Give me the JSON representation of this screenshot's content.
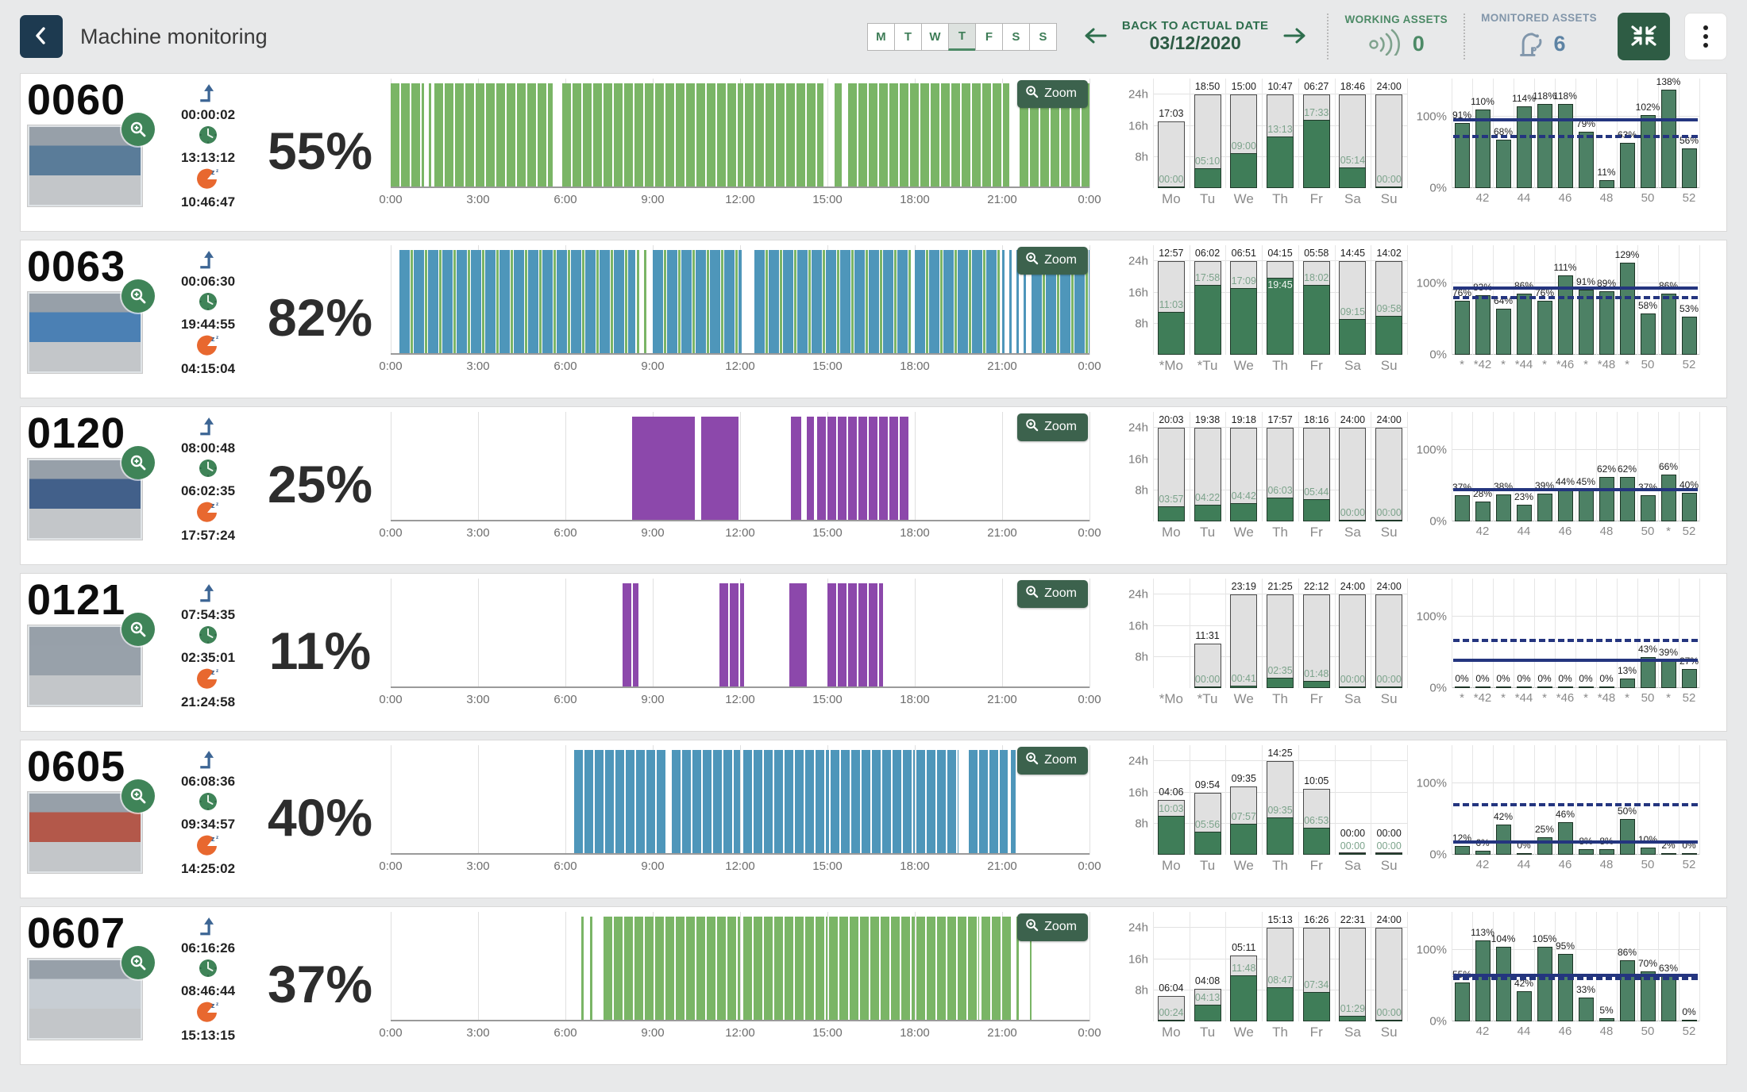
{
  "header": {
    "title": "Machine monitoring",
    "days": [
      "M",
      "T",
      "W",
      "T",
      "F",
      "S",
      "S"
    ],
    "active_day_index": 3,
    "back_to_date_label": "BACK TO ACTUAL DATE",
    "date": "03/12/2020",
    "working_assets": {
      "label": "WORKING ASSETS",
      "count": "0"
    },
    "monitored_assets": {
      "label": "MONITORED ASSETS",
      "count": "6"
    }
  },
  "colors": {
    "timeline_green": "#7ab566",
    "timeline_blue": "#4e96ba",
    "timeline_purple": "#8c48ab",
    "line_navy": "#24357f",
    "bar_green": "#4d8165",
    "accent_green": "#2e5c44",
    "navy": "#1d3a50"
  },
  "timeline_axis": [
    "0:00",
    "3:00",
    "6:00",
    "9:00",
    "12:00",
    "15:00",
    "18:00",
    "21:00",
    "0:00"
  ],
  "week_y_labels": [
    "24h",
    "16h",
    "8h"
  ],
  "pct_y_labels": [
    "100%",
    "0%"
  ],
  "zoom_label": "Zoom",
  "chart_data": {
    "type": "table",
    "note": "per-machine charts stored under machines[]"
  },
  "machines": [
    {
      "id": "0060",
      "incoming_time": "00:00:02",
      "working_time": "13:13:12",
      "idle_time": "10:46:47",
      "percent": "55%",
      "photo_tint": "#5a7c99",
      "timeline_segments": [
        [
          0,
          1.0,
          "g-t"
        ],
        [
          1.05,
          1.45,
          "g-x"
        ],
        [
          1.5,
          5.55,
          "g-t"
        ],
        [
          5.9,
          12.1,
          "g-t"
        ],
        [
          12.15,
          14.85,
          "g-t"
        ],
        [
          15.25,
          15.5,
          "g-s"
        ],
        [
          15.7,
          21.25,
          "g-t"
        ],
        [
          21.6,
          24,
          "g-t"
        ]
      ],
      "week_days": [
        [
          "Mo",
          "17:03",
          "00:00"
        ],
        [
          "Tu",
          "18:50",
          "05:10"
        ],
        [
          "We",
          "15:00",
          "09:00"
        ],
        [
          "Th",
          "10:47",
          "13:13"
        ],
        [
          "Fr",
          "06:27",
          "17:33"
        ],
        [
          "Sa",
          "18:46",
          "05:14"
        ],
        [
          "Su",
          "24:00",
          "00:00"
        ]
      ],
      "weeks": {
        "values": [
          91,
          110,
          68,
          114,
          118,
          118,
          79,
          11,
          63,
          102,
          138,
          56
        ],
        "ticks": [
          "",
          "42",
          "",
          "44",
          "",
          "46",
          "",
          "48",
          "",
          "50",
          "",
          "52"
        ],
        "solid_line": 93,
        "dashed_line": 70
      }
    },
    {
      "id": "0063",
      "incoming_time": "00:06:30",
      "working_time": "19:44:55",
      "idle_time": "04:15:04",
      "percent": "82%",
      "photo_tint": "#4b80b4",
      "timeline_segments": [
        [
          0.3,
          8.4,
          "m"
        ],
        [
          8.45,
          8.95,
          "g-x"
        ],
        [
          9.0,
          12.05,
          "m"
        ],
        [
          12.5,
          17.9,
          "m"
        ],
        [
          18.0,
          20.95,
          "m"
        ],
        [
          21.0,
          21.9,
          "b-x"
        ],
        [
          22.0,
          24,
          "m"
        ]
      ],
      "week_days": [
        [
          "*Mo",
          "12:57",
          "11:03"
        ],
        [
          "*Tu",
          "06:02",
          "17:58"
        ],
        [
          "We",
          "06:51",
          "17:09"
        ],
        [
          "Th",
          "04:15",
          "19:45"
        ],
        [
          "Fr",
          "05:58",
          "18:02"
        ],
        [
          "Sa",
          "14:45",
          "09:15"
        ],
        [
          "Su",
          "14:02",
          "09:58"
        ]
      ],
      "weeks": {
        "values": [
          76,
          83,
          64,
          86,
          76,
          111,
          91,
          89,
          129,
          58,
          86,
          53
        ],
        "ticks": [
          "*",
          "*42",
          "*",
          "*44",
          "*",
          "*46",
          "*",
          "*48",
          "*",
          "50",
          "",
          "52"
        ],
        "solid_line": 91,
        "dashed_line": 78
      }
    },
    {
      "id": "0120",
      "incoming_time": "08:00:48",
      "working_time": "06:02:35",
      "idle_time": "17:57:24",
      "percent": "25%",
      "photo_tint": "#42608a",
      "timeline_segments": [
        [
          8.3,
          10.45,
          "p-s"
        ],
        [
          10.65,
          11.95,
          "p-s"
        ],
        [
          13.75,
          14.1,
          "p-s"
        ],
        [
          14.3,
          14.55,
          "p-s"
        ],
        [
          14.65,
          17.85,
          "p-t"
        ]
      ],
      "week_days": [
        [
          "Mo",
          "20:03",
          "03:57"
        ],
        [
          "Tu",
          "19:38",
          "04:22"
        ],
        [
          "We",
          "19:18",
          "04:42"
        ],
        [
          "Th",
          "17:57",
          "06:03"
        ],
        [
          "Fr",
          "18:16",
          "05:44"
        ],
        [
          "Sa",
          "24:00",
          "00:00"
        ],
        [
          "Su",
          "24:00",
          "00:00"
        ]
      ],
      "weeks": {
        "values": [
          37,
          28,
          38,
          23,
          39,
          44,
          45,
          62,
          62,
          37,
          66,
          40
        ],
        "ticks": [
          "",
          "42",
          "",
          "44",
          "",
          "46",
          "",
          "48",
          "",
          "50",
          "*",
          "52"
        ],
        "solid_line": 42,
        "dashed_line": null
      }
    },
    {
      "id": "0121",
      "incoming_time": "07:54:35",
      "working_time": "02:35:01",
      "idle_time": "21:24:58",
      "percent": "11%",
      "photo_tint": "#98a1aa",
      "timeline_segments": [
        [
          7.95,
          8.5,
          "p-t"
        ],
        [
          11.3,
          12.15,
          "p-t"
        ],
        [
          13.7,
          14.3,
          "p-s"
        ],
        [
          15.0,
          16.9,
          "p-t"
        ]
      ],
      "week_days": [
        [
          "*Mo",
          null,
          null
        ],
        [
          "*Tu",
          "11:31",
          "00:00"
        ],
        [
          "We",
          "23:19",
          "00:41"
        ],
        [
          "Th",
          "21:25",
          "02:35"
        ],
        [
          "Fr",
          "22:12",
          "01:48"
        ],
        [
          "Sa",
          "24:00",
          "00:00"
        ],
        [
          "Su",
          "24:00",
          "00:00"
        ]
      ],
      "weeks": {
        "values": [
          0,
          0,
          0,
          0,
          0,
          0,
          0,
          0,
          13,
          43,
          39,
          27
        ],
        "ticks": [
          "*",
          "*42",
          "*",
          "*44",
          "*",
          "*46",
          "*",
          "*48",
          "*",
          "50",
          "*",
          "52"
        ],
        "solid_line": 37,
        "dashed_line": 65
      }
    },
    {
      "id": "0605",
      "incoming_time": "06:08:36",
      "working_time": "09:34:57",
      "idle_time": "14:25:02",
      "percent": "40%",
      "photo_tint": "#b3584a",
      "timeline_segments": [
        [
          6.3,
          9.5,
          "b-t"
        ],
        [
          9.65,
          12.0,
          "b-t"
        ],
        [
          12.1,
          15.05,
          "b-t"
        ],
        [
          15.1,
          18.0,
          "b-t"
        ],
        [
          18.05,
          19.5,
          "b-t"
        ],
        [
          19.85,
          21.2,
          "b-t"
        ],
        [
          21.3,
          21.45,
          "b-s"
        ]
      ],
      "week_days": [
        [
          "Mo",
          "04:06",
          "10:03"
        ],
        [
          "Tu",
          "09:54",
          "05:56"
        ],
        [
          "We",
          "09:35",
          "07:57"
        ],
        [
          "Th",
          "14:25",
          "09:35"
        ],
        [
          "Fr",
          "10:05",
          "06:53"
        ],
        [
          "Sa",
          "00:00",
          "00:00"
        ],
        [
          "Su",
          "00:00",
          "00:00"
        ]
      ],
      "weeks": {
        "values": [
          12,
          6,
          42,
          0,
          25,
          46,
          8,
          8,
          50,
          10,
          2,
          0
        ],
        "ticks": [
          "",
          "42",
          "",
          "44",
          "",
          "46",
          "",
          "48",
          "",
          "50",
          "",
          "52"
        ],
        "solid_line": 16,
        "dashed_line": 68
      }
    },
    {
      "id": "0607",
      "incoming_time": "06:16:26",
      "working_time": "08:46:44",
      "idle_time": "15:13:15",
      "percent": "37%",
      "photo_tint": "#c7cdd3",
      "timeline_segments": [
        [
          6.55,
          6.62,
          "g-s"
        ],
        [
          6.85,
          7.1,
          "g-x"
        ],
        [
          7.3,
          12.0,
          "g-t"
        ],
        [
          12.1,
          15.0,
          "g-t"
        ],
        [
          15.05,
          18.0,
          "g-t"
        ],
        [
          18.05,
          20.2,
          "g-t"
        ],
        [
          20.3,
          21.35,
          "g-t"
        ],
        [
          21.5,
          21.57,
          "g-s"
        ],
        [
          21.95,
          22.02,
          "g-s"
        ]
      ],
      "week_days": [
        [
          "Mo",
          "06:04",
          "00:24"
        ],
        [
          "Tu",
          "04:08",
          "04:13"
        ],
        [
          "We",
          "05:11",
          "11:48"
        ],
        [
          "Th",
          "15:13",
          "08:47"
        ],
        [
          "Fr",
          "16:26",
          "07:34"
        ],
        [
          "Sa",
          "22:31",
          "01:29"
        ],
        [
          "Su",
          "24:00",
          "00:00"
        ]
      ],
      "weeks": {
        "values": [
          55,
          113,
          104,
          42,
          105,
          95,
          33,
          5,
          86,
          70,
          63,
          0
        ],
        "ticks": [
          "",
          "42",
          "",
          "44",
          "",
          "46",
          "",
          "48",
          "",
          "50",
          "",
          "52"
        ],
        "solid_line": 62,
        "dashed_line": 58
      }
    }
  ]
}
